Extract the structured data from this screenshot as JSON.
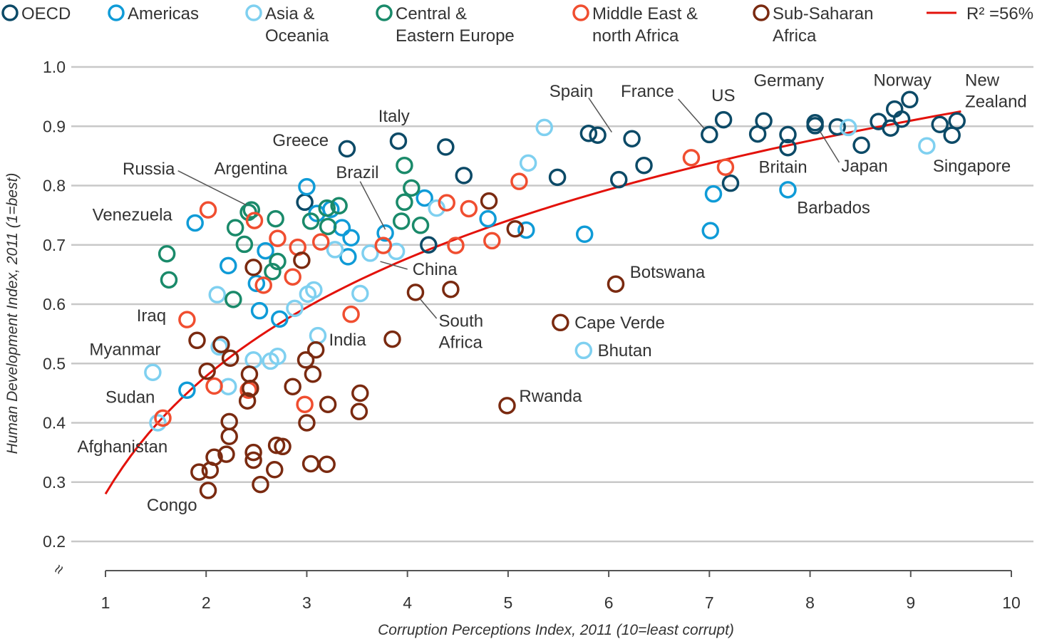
{
  "chart_data": {
    "type": "scatter",
    "xlabel": "Corruption Perceptions Index, 2011 (10=least corrupt)",
    "ylabel": "Human Development Index, 2011 (1=best)",
    "xlim": [
      1,
      10
    ],
    "ylim": [
      0.2,
      1.0
    ],
    "xticks": [
      "1",
      "2",
      "3",
      "4",
      "5",
      "6",
      "7",
      "8",
      "9",
      "10"
    ],
    "yticks": [
      "0.2",
      "0.3",
      "0.4",
      "0.5",
      "0.6",
      "0.7",
      "0.8",
      "0.9",
      "1.0"
    ],
    "grid": "horizontal",
    "axis_break_symbol": "≈",
    "legend_placement": "top",
    "trendline": {
      "label": "R² =56%",
      "type": "logarithmic",
      "a": 0.28,
      "b": 0.2865,
      "x_range": [
        1,
        9.5
      ],
      "color": "#e3120b"
    },
    "series": [
      {
        "name": "OECD",
        "color": "#0c4a67",
        "points": [
          [
            3.4,
            0.862
          ],
          [
            3.91,
            0.875
          ],
          [
            4.38,
            0.865
          ],
          [
            4.56,
            0.817
          ],
          [
            4.21,
            0.7
          ],
          [
            2.98,
            0.772
          ],
          [
            5.49,
            0.814
          ],
          [
            5.8,
            0.888
          ],
          [
            5.89,
            0.885
          ],
          [
            6.23,
            0.879
          ],
          [
            6.1,
            0.81
          ],
          [
            6.35,
            0.834
          ],
          [
            7.0,
            0.886
          ],
          [
            7.14,
            0.911
          ],
          [
            7.21,
            0.804
          ],
          [
            7.48,
            0.887
          ],
          [
            7.54,
            0.909
          ],
          [
            7.78,
            0.886
          ],
          [
            7.78,
            0.864
          ],
          [
            8.05,
            0.901
          ],
          [
            8.05,
            0.906
          ],
          [
            8.27,
            0.899
          ],
          [
            8.51,
            0.868
          ],
          [
            8.68,
            0.908
          ],
          [
            8.8,
            0.897
          ],
          [
            8.84,
            0.929
          ],
          [
            8.91,
            0.912
          ],
          [
            8.99,
            0.945
          ],
          [
            9.29,
            0.903
          ],
          [
            9.41,
            0.885
          ],
          [
            9.46,
            0.909
          ]
        ]
      },
      {
        "name": "Americas",
        "color": "#0f9bd7",
        "points": [
          [
            1.89,
            0.737
          ],
          [
            1.81,
            0.455
          ],
          [
            2.22,
            0.665
          ],
          [
            2.53,
            0.589
          ],
          [
            2.59,
            0.69
          ],
          [
            2.5,
            0.635
          ],
          [
            2.73,
            0.575
          ],
          [
            3.0,
            0.798
          ],
          [
            3.1,
            0.753
          ],
          [
            3.24,
            0.76
          ],
          [
            3.35,
            0.729
          ],
          [
            3.44,
            0.712
          ],
          [
            3.41,
            0.68
          ],
          [
            3.78,
            0.72
          ],
          [
            4.17,
            0.779
          ],
          [
            4.8,
            0.744
          ],
          [
            5.18,
            0.725
          ],
          [
            5.76,
            0.718
          ],
          [
            7.04,
            0.786
          ],
          [
            7.01,
            0.724
          ],
          [
            7.78,
            0.793
          ]
        ]
      },
      {
        "name": "Asia & Oceania",
        "color": "#7fd0f0",
        "points": [
          [
            1.47,
            0.485
          ],
          [
            1.52,
            0.4
          ],
          [
            2.11,
            0.616
          ],
          [
            2.13,
            0.528
          ],
          [
            2.22,
            0.461
          ],
          [
            2.47,
            0.506
          ],
          [
            2.64,
            0.504
          ],
          [
            2.71,
            0.512
          ],
          [
            2.88,
            0.593
          ],
          [
            3.01,
            0.617
          ],
          [
            3.07,
            0.624
          ],
          [
            3.11,
            0.547
          ],
          [
            3.28,
            0.692
          ],
          [
            3.53,
            0.618
          ],
          [
            3.63,
            0.686
          ],
          [
            3.89,
            0.689
          ],
          [
            4.29,
            0.762
          ],
          [
            5.2,
            0.838
          ],
          [
            5.36,
            0.898
          ],
          [
            5.75,
            0.522
          ],
          [
            8.38,
            0.898
          ],
          [
            9.16,
            0.867
          ]
        ]
      },
      {
        "name": "Central & Eastern Europe",
        "color": "#1a8a6a",
        "points": [
          [
            1.61,
            0.685
          ],
          [
            1.63,
            0.641
          ],
          [
            2.27,
            0.608
          ],
          [
            2.29,
            0.729
          ],
          [
            2.38,
            0.701
          ],
          [
            2.42,
            0.755
          ],
          [
            2.45,
            0.759
          ],
          [
            2.69,
            0.744
          ],
          [
            2.66,
            0.655
          ],
          [
            2.71,
            0.672
          ],
          [
            3.04,
            0.74
          ],
          [
            3.2,
            0.762
          ],
          [
            3.32,
            0.766
          ],
          [
            3.21,
            0.731
          ],
          [
            3.94,
            0.74
          ],
          [
            3.97,
            0.834
          ],
          [
            4.04,
            0.796
          ],
          [
            3.97,
            0.772
          ],
          [
            4.13,
            0.733
          ]
        ]
      },
      {
        "name": "Middle East & north Africa",
        "color": "#f04e30",
        "points": [
          [
            2.02,
            0.759
          ],
          [
            1.81,
            0.574
          ],
          [
            1.57,
            0.408
          ],
          [
            2.08,
            0.462
          ],
          [
            2.48,
            0.741
          ],
          [
            2.57,
            0.632
          ],
          [
            2.71,
            0.711
          ],
          [
            2.91,
            0.696
          ],
          [
            2.86,
            0.646
          ],
          [
            3.14,
            0.705
          ],
          [
            2.98,
            0.431
          ],
          [
            2.42,
            0.455
          ],
          [
            3.44,
            0.583
          ],
          [
            3.76,
            0.699
          ],
          [
            4.39,
            0.771
          ],
          [
            4.48,
            0.699
          ],
          [
            4.61,
            0.761
          ],
          [
            4.84,
            0.707
          ],
          [
            5.11,
            0.807
          ],
          [
            6.82,
            0.847
          ],
          [
            7.16,
            0.831
          ]
        ]
      },
      {
        "name": "Sub-Saharan Africa",
        "color": "#7a2a10",
        "points": [
          [
            1.91,
            0.539
          ],
          [
            2.01,
            0.487
          ],
          [
            2.15,
            0.532
          ],
          [
            2.24,
            0.509
          ],
          [
            2.43,
            0.482
          ],
          [
            2.44,
            0.458
          ],
          [
            2.41,
            0.437
          ],
          [
            2.47,
            0.662
          ],
          [
            2.95,
            0.674
          ],
          [
            2.86,
            0.461
          ],
          [
            2.99,
            0.506
          ],
          [
            3.06,
            0.482
          ],
          [
            3.09,
            0.523
          ],
          [
            3.21,
            0.431
          ],
          [
            3.53,
            0.45
          ],
          [
            3.52,
            0.419
          ],
          [
            3.85,
            0.541
          ],
          [
            4.08,
            0.62
          ],
          [
            4.43,
            0.625
          ],
          [
            4.81,
            0.774
          ],
          [
            5.07,
            0.727
          ],
          [
            4.99,
            0.429
          ],
          [
            5.52,
            0.569
          ],
          [
            6.07,
            0.634
          ],
          [
            2.23,
            0.402
          ],
          [
            2.23,
            0.377
          ],
          [
            2.2,
            0.347
          ],
          [
            2.08,
            0.342
          ],
          [
            2.04,
            0.32
          ],
          [
            1.93,
            0.317
          ],
          [
            2.02,
            0.286
          ],
          [
            2.47,
            0.35
          ],
          [
            2.47,
            0.337
          ],
          [
            2.7,
            0.362
          ],
          [
            2.76,
            0.36
          ],
          [
            2.68,
            0.321
          ],
          [
            2.54,
            0.296
          ],
          [
            3.0,
            0.4
          ],
          [
            3.04,
            0.331
          ],
          [
            3.2,
            0.33
          ]
        ]
      }
    ],
    "annotations": [
      {
        "text": "Greece",
        "x": 2.66,
        "y": 0.876
      },
      {
        "text": "Italy",
        "x": 3.71,
        "y": 0.917
      },
      {
        "text": "Russia",
        "x": 1.17,
        "y": 0.828,
        "leader": [
          [
            1.72,
            0.825
          ],
          [
            2.4,
            0.767
          ]
        ]
      },
      {
        "text": "Argentina",
        "x": 2.08,
        "y": 0.829
      },
      {
        "text": "Brazil",
        "x": 3.29,
        "y": 0.822,
        "leader": [
          [
            3.53,
            0.807
          ],
          [
            3.78,
            0.726
          ]
        ]
      },
      {
        "text": "Venezuela",
        "x": 0.87,
        "y": 0.751
      },
      {
        "text": "Iraq",
        "x": 1.31,
        "y": 0.581
      },
      {
        "text": "Myanmar",
        "x": 0.84,
        "y": 0.524
      },
      {
        "text": "Sudan",
        "x": 1.0,
        "y": 0.443
      },
      {
        "text": "Afghanistan",
        "x": 0.72,
        "y": 0.36
      },
      {
        "text": "Congo",
        "x": 1.41,
        "y": 0.261
      },
      {
        "text": "India",
        "x": 3.22,
        "y": 0.54
      },
      {
        "text": "China",
        "x": 4.05,
        "y": 0.659,
        "leader": [
          [
            4.0,
            0.659
          ],
          [
            3.73,
            0.672
          ]
        ]
      },
      {
        "text": "South",
        "text2": "Africa",
        "x": 4.31,
        "y": 0.572,
        "leader": [
          [
            4.29,
            0.576
          ],
          [
            4.13,
            0.608
          ]
        ]
      },
      {
        "text": "Cape Verde",
        "x": 5.66,
        "y": 0.569
      },
      {
        "text": "Bhutan",
        "x": 5.89,
        "y": 0.522
      },
      {
        "text": "Rwanda",
        "x": 5.11,
        "y": 0.445
      },
      {
        "text": "Botswana",
        "x": 6.21,
        "y": 0.654
      },
      {
        "text": "Spain",
        "x": 5.41,
        "y": 0.959,
        "leader": [
          [
            5.8,
            0.948
          ],
          [
            6.03,
            0.89
          ]
        ]
      },
      {
        "text": "France",
        "x": 6.12,
        "y": 0.959,
        "leader": [
          [
            6.69,
            0.946
          ],
          [
            6.95,
            0.896
          ]
        ]
      },
      {
        "text": "US",
        "x": 7.02,
        "y": 0.952
      },
      {
        "text": "Germany",
        "x": 7.44,
        "y": 0.977
      },
      {
        "text": "Norway",
        "x": 8.63,
        "y": 0.978
      },
      {
        "text": "New",
        "text2": "Zealand",
        "x": 9.54,
        "y": 0.978
      },
      {
        "text": "Britain",
        "x": 7.49,
        "y": 0.831
      },
      {
        "text": "Japan",
        "x": 8.31,
        "y": 0.833,
        "leader": [
          [
            8.29,
            0.839
          ],
          [
            8.1,
            0.891
          ]
        ]
      },
      {
        "text": "Singapore",
        "x": 9.22,
        "y": 0.833
      },
      {
        "text": "Barbados",
        "x": 7.87,
        "y": 0.763
      }
    ]
  },
  "legend": [
    {
      "line1": "OECD",
      "line2": ""
    },
    {
      "line1": "Americas",
      "line2": ""
    },
    {
      "line1": "Asia &",
      "line2": "Oceania"
    },
    {
      "line1": "Central &",
      "line2": "Eastern Europe"
    },
    {
      "line1": "Middle East &",
      "line2": "north Africa"
    },
    {
      "line1": "Sub-Saharan",
      "line2": "Africa"
    }
  ]
}
